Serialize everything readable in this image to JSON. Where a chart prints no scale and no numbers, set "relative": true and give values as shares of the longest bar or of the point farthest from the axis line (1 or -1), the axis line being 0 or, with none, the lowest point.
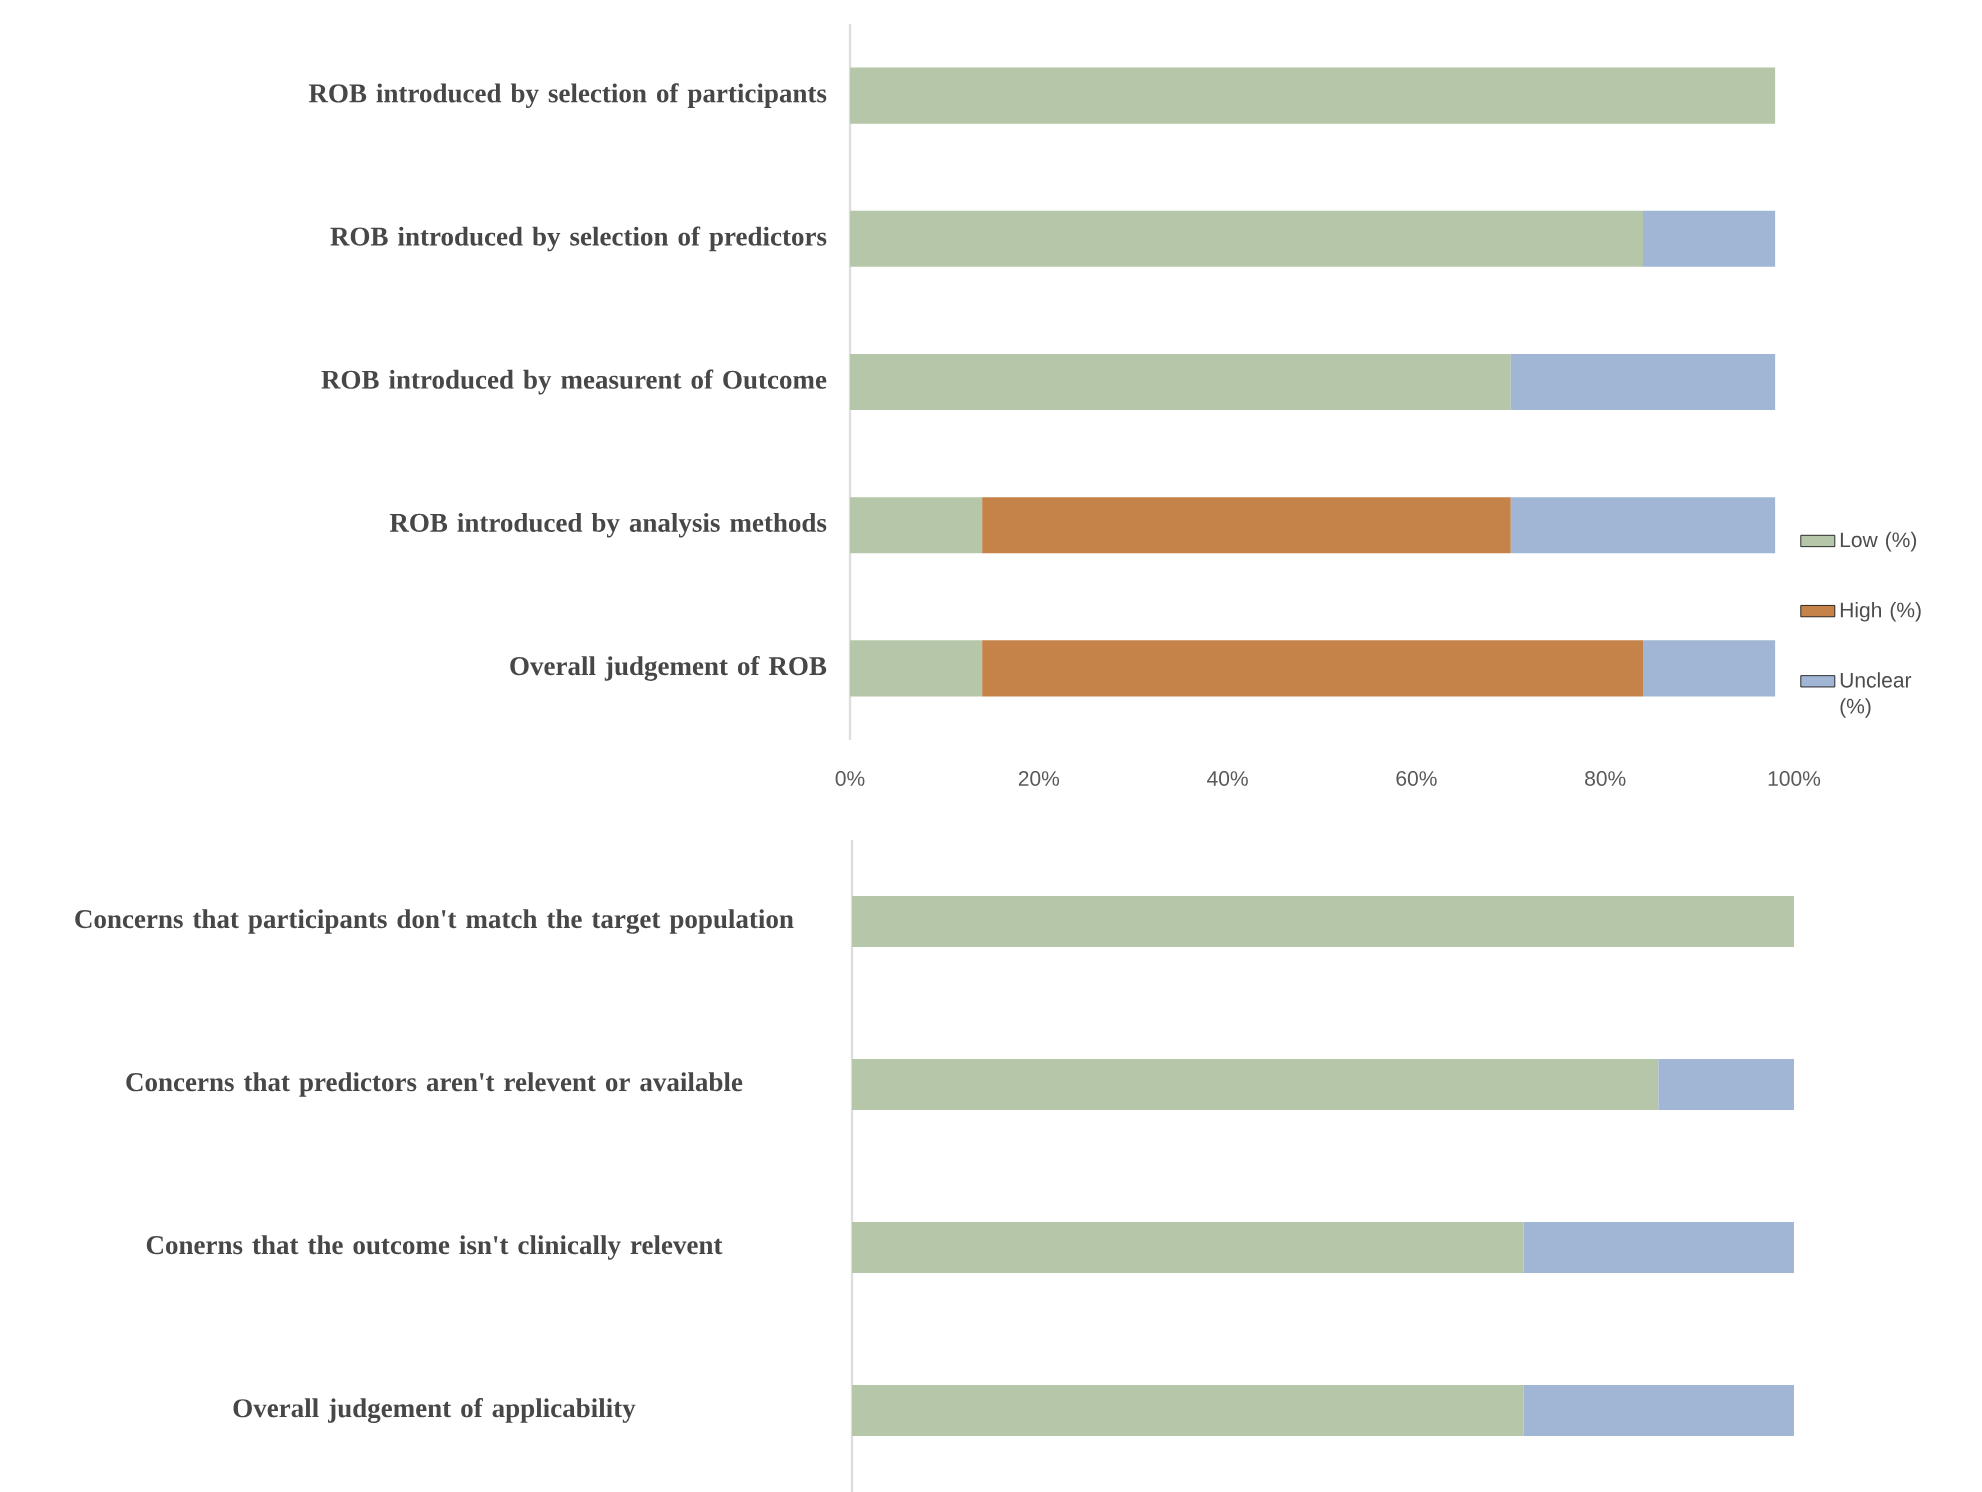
{
  "chart_data": [
    {
      "type": "bar",
      "orientation": "horizontal",
      "stacked": true,
      "categories": [
        "ROB introduced by selection of participants",
        "ROB introduced by selection of predictors",
        "ROB introduced by measurent of Outcome",
        "ROB introduced by analysis methods",
        "Overall judgement of ROB"
      ],
      "series": [
        {
          "name": "Low (%)",
          "color": "#b5c6a9",
          "values": [
            98,
            84,
            70,
            14,
            14
          ]
        },
        {
          "name": "High (%)",
          "color": "#c5834a",
          "values": [
            null,
            null,
            null,
            56,
            70
          ]
        },
        {
          "name": "Unclear (%)",
          "color": "#a1b6d4",
          "values": [
            null,
            14,
            28,
            28,
            14
          ]
        }
      ],
      "xlim": [
        0,
        100
      ],
      "xticks": [
        {
          "value": 0,
          "label": "0%"
        },
        {
          "value": 20,
          "label": "20%"
        },
        {
          "value": 40,
          "label": "40%"
        },
        {
          "value": 60,
          "label": "60%"
        },
        {
          "value": 80,
          "label": "80%"
        },
        {
          "value": 100,
          "label": "100%"
        }
      ],
      "legend": "right"
    },
    {
      "type": "bar",
      "orientation": "horizontal",
      "stacked": true,
      "relative": true,
      "categories": [
        "Concerns that participants don't match the target population",
        "Concerns that predictors aren't relevent or available",
        "Conerns that the outcome isn't clinically relevent",
        "Overall judgement of applicability"
      ],
      "series": [
        {
          "color": "#b5c6a9",
          "values": [
            1,
            0.856,
            0.713,
            0.713
          ]
        },
        {
          "color": "#c5834a",
          "values": [
            null,
            null,
            null,
            null
          ]
        },
        {
          "color": "#a1b6d4",
          "values": [
            null,
            0.144,
            0.287,
            0.287
          ]
        }
      ]
    }
  ]
}
